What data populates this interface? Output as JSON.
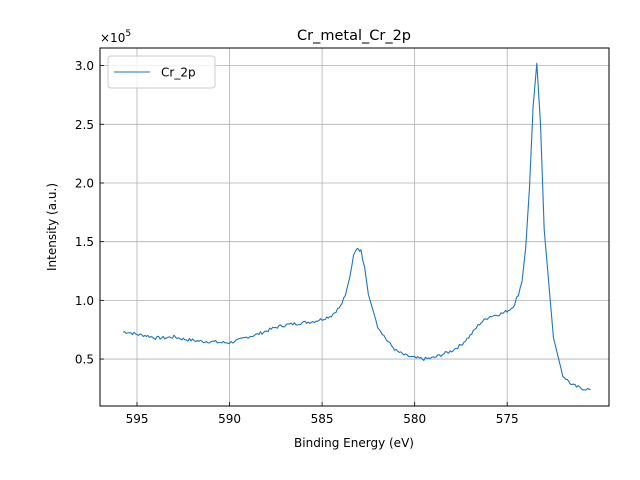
{
  "chart_data": {
    "type": "line",
    "title": "Cr_metal_Cr_2p",
    "xlabel": "Binding Energy (eV)",
    "ylabel": "Intensity (a.u.)",
    "y_multiplier_label": "×10",
    "y_multiplier_exponent": "5",
    "x_reversed": true,
    "xlim": [
      597.0,
      569.5
    ],
    "ylim": [
      0.1,
      3.15
    ],
    "x_ticks": [
      595,
      590,
      585,
      580,
      575
    ],
    "x_tick_labels": [
      "595",
      "590",
      "585",
      "580",
      "575"
    ],
    "y_ticks": [
      0.5,
      1.0,
      1.5,
      2.0,
      2.5,
      3.0
    ],
    "y_tick_labels": [
      "0.5",
      "1.0",
      "1.5",
      "2.0",
      "2.5",
      "3.0"
    ],
    "grid": true,
    "legend_position": "top-left",
    "series": [
      {
        "name": "Cr_2p",
        "color": "#1f77b4",
        "x": [
          595.75,
          595.5,
          595.0,
          594.5,
          594.0,
          593.5,
          593.0,
          592.5,
          592.0,
          591.5,
          591.0,
          590.5,
          590.0,
          589.5,
          589.0,
          588.5,
          588.0,
          587.5,
          587.0,
          586.5,
          586.0,
          585.5,
          585.0,
          584.5,
          584.0,
          583.75,
          583.5,
          583.3,
          583.1,
          582.9,
          582.7,
          582.5,
          582.0,
          581.5,
          581.0,
          580.5,
          580.0,
          579.5,
          579.0,
          578.5,
          578.0,
          577.5,
          577.0,
          576.5,
          576.0,
          575.5,
          575.25,
          575.0,
          574.8,
          574.6,
          574.4,
          574.2,
          574.0,
          573.8,
          573.6,
          573.4,
          573.2,
          573.0,
          572.5,
          572.0,
          571.5,
          571.0,
          570.5
        ],
        "values": [
          0.73,
          0.73,
          0.71,
          0.7,
          0.68,
          0.68,
          0.69,
          0.67,
          0.66,
          0.65,
          0.65,
          0.64,
          0.64,
          0.66,
          0.69,
          0.71,
          0.74,
          0.77,
          0.79,
          0.8,
          0.81,
          0.82,
          0.84,
          0.87,
          0.95,
          1.04,
          1.2,
          1.38,
          1.45,
          1.42,
          1.28,
          1.05,
          0.78,
          0.66,
          0.57,
          0.53,
          0.51,
          0.5,
          0.51,
          0.54,
          0.57,
          0.62,
          0.7,
          0.8,
          0.86,
          0.88,
          0.89,
          0.91,
          0.93,
          0.97,
          1.05,
          1.16,
          1.45,
          1.95,
          2.65,
          3.02,
          2.5,
          1.6,
          0.68,
          0.36,
          0.28,
          0.25,
          0.24
        ]
      }
    ]
  }
}
